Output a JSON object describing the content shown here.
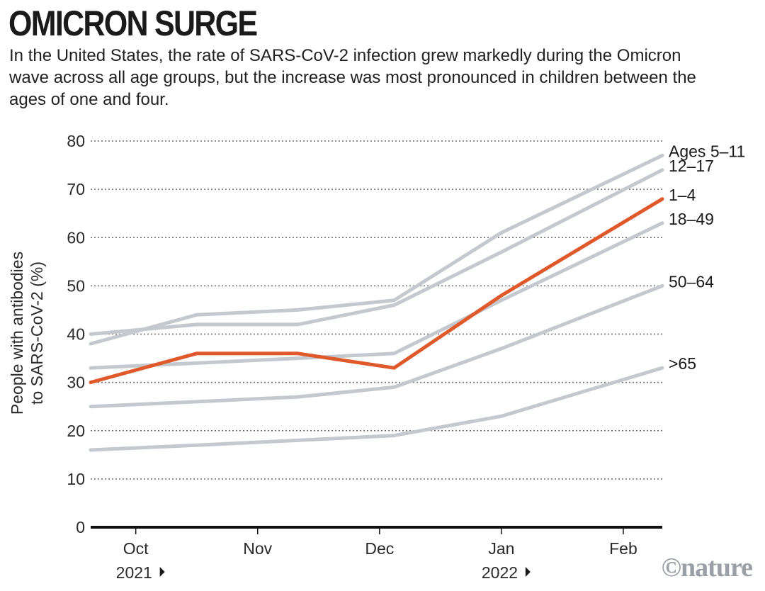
{
  "header": {
    "title": "OMICRON SURGE",
    "subtitle": "In the United States, the rate of SARS-CoV-2 infection grew markedly during the Omicron wave across all age groups, but the increase was most pronounced in children between the ages of one and four."
  },
  "credit": "©nature",
  "colors": {
    "highlight": "#e0592a",
    "other_series": "#c4c9d0",
    "gridline": "#6b6b6b",
    "axis": "#111111"
  },
  "chart_data": {
    "type": "line",
    "title": "OMICRON SURGE",
    "ylabel_lines": [
      "People with antibodies",
      "to SARS-CoV-2 (%)"
    ],
    "xlabel": "",
    "ylim": [
      0,
      80
    ],
    "yticks": [
      0,
      10,
      20,
      30,
      40,
      50,
      60,
      70,
      80
    ],
    "grid": true,
    "xlim": [
      -0.37,
      4.32
    ],
    "x": [
      -0.37,
      0.5,
      1.33,
      2.12,
      3.0,
      4.32
    ],
    "month_ticks": [
      {
        "pos": 0,
        "label": "Oct",
        "year": "2021"
      },
      {
        "pos": 1,
        "label": "Nov",
        "year": ""
      },
      {
        "pos": 2,
        "label": "Dec",
        "year": ""
      },
      {
        "pos": 3,
        "label": "Jan",
        "year": "2022"
      },
      {
        "pos": 4,
        "label": "Feb",
        "year": ""
      }
    ],
    "series": [
      {
        "name": "Ages 5–11",
        "label": "Ages 5–11",
        "highlight": false,
        "values": [
          38,
          44,
          45,
          47,
          61,
          77
        ]
      },
      {
        "name": "12–17",
        "label": "12–17",
        "highlight": false,
        "values": [
          40,
          42,
          42,
          46,
          57,
          74
        ]
      },
      {
        "name": "18–49",
        "label": "18–49",
        "highlight": false,
        "values": [
          33,
          34,
          35,
          36,
          47,
          63
        ]
      },
      {
        "name": "50–64",
        "label": "50–64",
        "highlight": false,
        "values": [
          25,
          26,
          27,
          29,
          37,
          50
        ]
      },
      {
        "name": ">65",
        "label": ">65",
        "highlight": false,
        "values": [
          16,
          17,
          18,
          19,
          23,
          33
        ]
      },
      {
        "name": "1–4",
        "label": "1–4",
        "highlight": true,
        "values": [
          30,
          36,
          36,
          33,
          48,
          68
        ]
      }
    ]
  }
}
